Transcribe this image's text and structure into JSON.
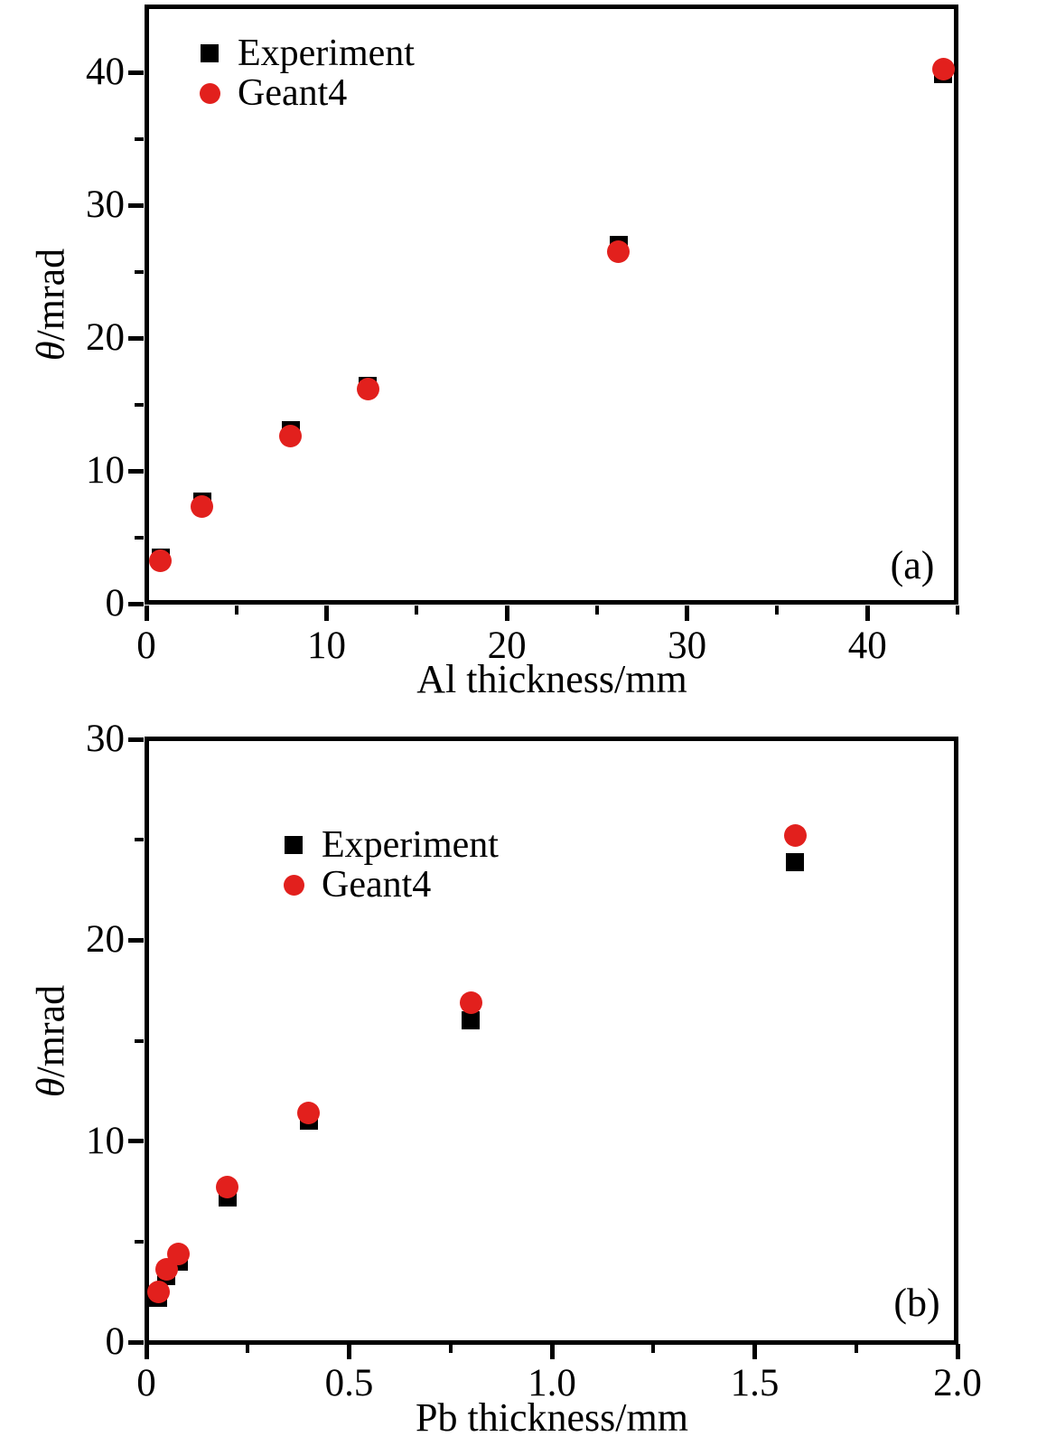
{
  "chart_data": [
    {
      "panel_label": "(a)",
      "type": "scatter",
      "xlabel": "Al thickness/mm",
      "ylabel": "θ/mrad",
      "ylabel_symbol": "θ",
      "ylabel_unit": "/mrad",
      "xlim": [
        0,
        45
      ],
      "ylim": [
        0,
        45
      ],
      "grid": false,
      "xticks": [
        0,
        10,
        20,
        30,
        40
      ],
      "xtick_labels": [
        "0",
        "10",
        "20",
        "30",
        "40"
      ],
      "xminor": [
        5,
        15,
        25,
        35,
        45
      ],
      "yticks": [
        0,
        10,
        20,
        30,
        40
      ],
      "ytick_labels": [
        "0",
        "10",
        "20",
        "30",
        "40"
      ],
      "yminor": [
        5,
        15,
        25,
        35
      ],
      "legend": {
        "position": "top-left",
        "items": [
          {
            "label": "Experiment",
            "marker": "square",
            "color": "#000000"
          },
          {
            "label": "Geant4",
            "marker": "circle",
            "color": "#e2201d"
          }
        ]
      },
      "series": [
        {
          "name": "Experiment",
          "marker": "square",
          "color": "#000000",
          "x": [
            0.8,
            3.1,
            8.0,
            12.3,
            26.2,
            44.2
          ],
          "y": [
            3.5,
            7.7,
            13.1,
            16.4,
            27.0,
            39.9
          ]
        },
        {
          "name": "Geant4",
          "marker": "circle",
          "color": "#e2201d",
          "x": [
            0.8,
            3.1,
            8.0,
            12.3,
            26.2,
            44.2
          ],
          "y": [
            3.2,
            7.3,
            12.6,
            16.2,
            26.5,
            40.3
          ]
        }
      ]
    },
    {
      "panel_label": "(b)",
      "type": "scatter",
      "xlabel": "Pb thickness/mm",
      "ylabel": "θ/mrad",
      "ylabel_symbol": "θ",
      "ylabel_unit": "/mrad",
      "xlim": [
        0,
        2.0
      ],
      "ylim": [
        0,
        30
      ],
      "grid": false,
      "xticks": [
        0,
        0.5,
        1.0,
        1.5,
        2.0
      ],
      "xtick_labels": [
        "0",
        "0.5",
        "1.0",
        "1.5",
        "2.0"
      ],
      "xminor": [
        0.25,
        0.75,
        1.25,
        1.75
      ],
      "yticks": [
        0,
        10,
        20,
        30
      ],
      "ytick_labels": [
        "0",
        "10",
        "20",
        "30"
      ],
      "yminor": [
        5,
        15,
        25
      ],
      "legend": {
        "position": "upper-left-inside",
        "items": [
          {
            "label": "Experiment",
            "marker": "square",
            "color": "#000000"
          },
          {
            "label": "Geant4",
            "marker": "circle",
            "color": "#e2201d"
          }
        ]
      },
      "series": [
        {
          "name": "Experiment",
          "marker": "square",
          "color": "#000000",
          "x": [
            0.03,
            0.05,
            0.08,
            0.2,
            0.4,
            0.8,
            1.6
          ],
          "y": [
            2.2,
            3.3,
            4.0,
            7.2,
            11.0,
            16.0,
            23.9
          ]
        },
        {
          "name": "Geant4",
          "marker": "circle",
          "color": "#e2201d",
          "x": [
            0.03,
            0.05,
            0.08,
            0.2,
            0.4,
            0.8,
            1.6
          ],
          "y": [
            2.5,
            3.6,
            4.4,
            7.7,
            11.4,
            16.9,
            25.2
          ]
        }
      ]
    }
  ]
}
